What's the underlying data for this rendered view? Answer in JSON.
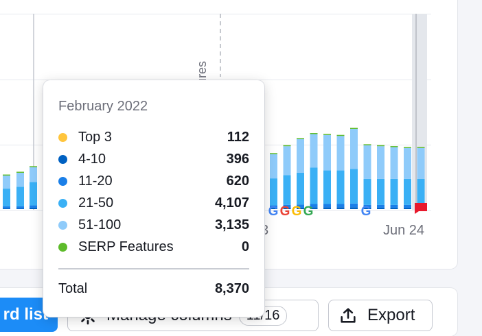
{
  "tooltip": {
    "title": "February 2022",
    "rows": [
      {
        "label": "Top 3",
        "value": "112",
        "color": "#ffc53d"
      },
      {
        "label": "4-10",
        "value": "396",
        "color": "#0061c2"
      },
      {
        "label": "11-20",
        "value": "620",
        "color": "#1a7fe8"
      },
      {
        "label": "21-50",
        "value": "4,107",
        "color": "#3ab0f5"
      },
      {
        "label": "51-100",
        "value": "3,135",
        "color": "#8fcbfa"
      },
      {
        "label": "SERP Features",
        "value": "0",
        "color": "#5dbb2a"
      }
    ],
    "total_label": "Total",
    "total_value": "8,370"
  },
  "chart": {
    "vertical_annotation": "ures",
    "x_labels": [
      "3",
      "Jun 24"
    ]
  },
  "toolbar": {
    "list_button_label": "rd list",
    "manage_columns_label": "Manage columns",
    "columns_badge": "11/16",
    "export_label": "Export"
  },
  "chart_data": {
    "type": "bar",
    "stacked": true,
    "series_order": [
      "Top 3",
      "4-10",
      "11-20",
      "21-50",
      "51-100",
      "SERP Features"
    ],
    "colors": [
      "#ffc53d",
      "#0061c2",
      "#1a7fe8",
      "#3ab0f5",
      "#8fcbfa",
      "#5dbb2a"
    ],
    "highlighted": {
      "category": "February 2022",
      "values": [
        112,
        396,
        620,
        4107,
        3135,
        0
      ],
      "total": 8370
    },
    "left_bars": [
      [
        0,
        2,
        4,
        38,
        28
      ],
      [
        0,
        2,
        4,
        42,
        30
      ],
      [
        0,
        3,
        5,
        50,
        32
      ],
      [
        0,
        3,
        5,
        58,
        36
      ]
    ],
    "right_bars": [
      [
        0,
        3,
        5,
        58,
        52
      ],
      [
        0,
        3,
        6,
        64,
        62
      ],
      [
        0,
        3,
        7,
        68,
        72
      ],
      [
        0,
        4,
        7,
        78,
        72
      ],
      [
        0,
        4,
        7,
        72,
        76
      ],
      [
        0,
        4,
        7,
        72,
        74
      ],
      [
        0,
        4,
        8,
        74,
        86
      ],
      [
        0,
        3,
        6,
        56,
        72
      ],
      [
        0,
        3,
        6,
        56,
        70
      ],
      [
        0,
        3,
        6,
        56,
        68
      ],
      [
        0,
        3,
        6,
        56,
        66
      ],
      [
        0,
        3,
        6,
        56,
        66
      ]
    ],
    "google_markers_count": 5,
    "flag_marker": true
  }
}
